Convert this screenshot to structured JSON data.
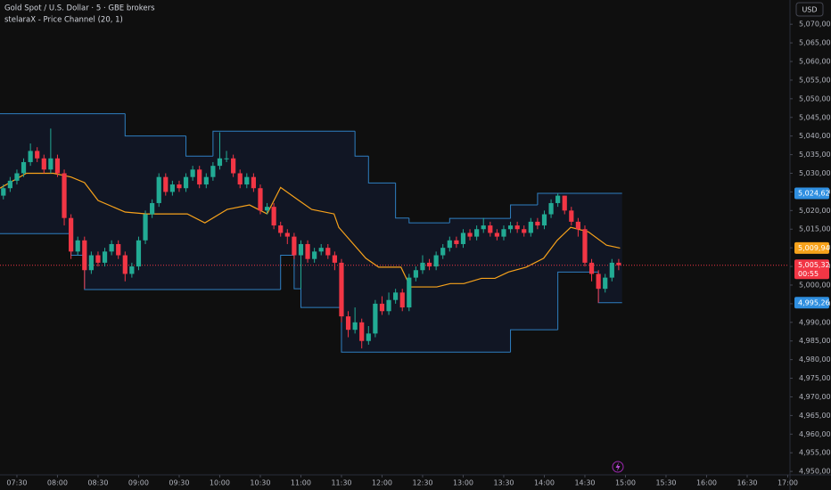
{
  "chart_data": {
    "type": "candlestick",
    "title": "Gold Spot / U.S. Dollar · 5 · GBE brokers",
    "indicator": "stelaraX - Price Channel (20, 1)",
    "currency": "USD",
    "countdown": "00:55",
    "up_color": "#22ab94",
    "down_color": "#f23645",
    "open": [
      5024,
      5026,
      5028,
      5030,
      5033,
      5036,
      5034,
      5031,
      5034,
      5030,
      5018,
      5009,
      5012,
      5004,
      5008,
      5006,
      5009,
      5011,
      5008,
      5003,
      5005,
      5012,
      5019,
      5022,
      5029,
      5025,
      5027,
      5026,
      5029,
      5031,
      5027,
      5029,
      5032,
      5034,
      5034,
      5030,
      5027,
      5029,
      5026,
      5020,
      5021,
      5016,
      5014,
      5013,
      5008,
      5011,
      5007,
      5009,
      5010,
      5008,
      5006,
      4991.6,
      4988,
      4990,
      4985,
      4987,
      4995,
      4993,
      4996,
      4998,
      4994,
      5002,
      5004,
      5006,
      5005,
      5008,
      5010,
      5012,
      5011,
      5014,
      5013,
      5015,
      5016,
      5014,
      5013,
      5015,
      5016,
      5015,
      5014,
      5017,
      5016,
      5019,
      5022,
      5024,
      5020,
      5017,
      5015,
      5006,
      5003,
      4999,
      5002,
      5006
    ],
    "high": [
      5027,
      5029,
      5031,
      5034,
      5038,
      5037,
      5035,
      5042,
      5035,
      5031,
      5019,
      5013,
      5013,
      5009,
      5009,
      5010,
      5012,
      5012,
      5009,
      5006,
      5013,
      5020,
      5023,
      5030,
      5030,
      5028,
      5028,
      5030,
      5032,
      5032,
      5030,
      5033,
      5041,
      5036,
      5035,
      5031,
      5030,
      5030,
      5027,
      5022,
      5022,
      5017,
      5015,
      5014,
      5012,
      5012,
      5010,
      5011,
      5011,
      5009,
      5007,
      4993,
      4994,
      4991,
      4989,
      4996,
      4997,
      4998,
      4999,
      4999,
      5003,
      5005,
      5008,
      5007,
      5009,
      5011,
      5013,
      5013,
      5015,
      5015,
      5016,
      5018,
      5017,
      5015,
      5016,
      5017,
      5017,
      5016,
      5018,
      5018,
      5020,
      5023,
      5024.62,
      5024,
      5021,
      5018,
      5016,
      5007,
      5004,
      5003,
      5007,
      5007
    ],
    "low": [
      5023,
      5025,
      5027,
      5029,
      5032,
      5033,
      5030,
      5030,
      5029,
      5016,
      5007,
      5008,
      4999,
      5003,
      5005,
      5005,
      5008,
      5007,
      5001,
      5002,
      5004,
      5011,
      5018,
      5021,
      5024,
      5024,
      5025,
      5025,
      5028,
      5026,
      5026,
      5028,
      5031,
      5033,
      5029,
      5026,
      5026,
      5025,
      5019,
      5019,
      5015,
      5013,
      5011,
      5007,
      4999,
      5006,
      5006,
      5008,
      5007,
      5004,
      4990,
      4986,
      4987,
      4983,
      4984,
      4986,
      4992,
      4992,
      4995,
      4993,
      4993,
      5001,
      5003,
      5004,
      5004,
      5007,
      5009,
      5010,
      5010,
      5012,
      5012,
      5014,
      5013,
      5012,
      5012,
      5014,
      5014,
      5013,
      5013,
      5015,
      5015,
      5018,
      5021,
      5019,
      5016,
      5013,
      5005,
      5001,
      4995.26,
      4998,
      5001,
      5004
    ],
    "close": [
      5026,
      5028,
      5030,
      5033,
      5036,
      5034,
      5031,
      5034,
      5030,
      5018,
      5009,
      5012,
      5004,
      5008,
      5006,
      5009,
      5011,
      5008,
      5003,
      5005,
      5012,
      5019,
      5022,
      5029,
      5025,
      5027,
      5026,
      5029,
      5031,
      5027,
      5029,
      5032,
      5034,
      5034,
      5030,
      5027,
      5029,
      5026,
      5020,
      5021,
      5016,
      5014,
      5013,
      5008,
      5011,
      5007,
      5009,
      5010,
      5008,
      5006,
      4991.6,
      4988,
      4990,
      4985,
      4987,
      4995,
      4993,
      4996,
      4998,
      4994,
      5002,
      5004,
      5006,
      5005,
      5008,
      5010,
      5012,
      5011,
      5014,
      5013,
      5015,
      5016,
      5014,
      5013,
      5015,
      5016,
      5015,
      5014,
      5017,
      5016,
      5019,
      5022,
      5024,
      5020,
      5017,
      5015,
      5006,
      5003,
      4999,
      5002,
      5006,
      5005.32
    ],
    "channel": {
      "color": "#2f7fc1",
      "fill": "rgba(41,98,255,0.09)",
      "upper": {
        "edges": [
          -0.5,
          18,
          27,
          31,
          52,
          54,
          58,
          60,
          66,
          75,
          79,
          91.5
        ],
        "values": [
          5046,
          5040,
          5034.6,
          5041.3,
          5034.6,
          5027.4,
          5018,
          5016.7,
          5017.9,
          5021.5,
          5024.62
        ]
      },
      "lower": {
        "edges": [
          -0.5,
          10,
          12,
          41,
          43,
          44,
          50,
          75,
          82,
          88,
          91.5
        ],
        "values": [
          5013.8,
          5008,
          4998.8,
          5008,
          4999,
          4994,
          4982,
          4988,
          5003.5,
          4995.26
        ]
      },
      "mid": {
        "color": "#f7a21b",
        "x": [
          -0.5,
          3.4,
          7.4,
          10,
          12,
          14,
          18,
          21.2,
          27.2,
          29.8,
          33.1,
          36.4,
          39,
          41,
          43.7,
          45.6,
          48.9,
          49.6,
          53.6,
          55.5,
          58.8,
          60.2,
          64.1,
          66.1,
          68.1,
          70.7,
          72.7,
          74.7,
          77.3,
          79.9,
          81.9,
          83.9,
          86.5,
          89.2,
          91.2
        ],
        "values": [
          5026,
          5030,
          5030,
          5029,
          5027.5,
          5022.7,
          5019.6,
          5019.1,
          5019.1,
          5016.7,
          5020.3,
          5021.5,
          5019.1,
          5026.2,
          5022.7,
          5020.3,
          5019.1,
          5015.5,
          5007.2,
          5004.8,
          5004.8,
          4999.5,
          4999.5,
          5000.4,
          5000.4,
          5001.8,
          5001.8,
          5003.5,
          5004.8,
          5007.2,
          5012,
          5015.5,
          5014.3,
          5010.7,
          5009.94
        ]
      }
    },
    "price_labels": [
      {
        "value": 5024.62,
        "label": "5,024,62",
        "color": "#2f8fe0"
      },
      {
        "value": 5009.94,
        "label": "5,009,94",
        "color": "#f7a21b"
      },
      {
        "value": 5005.32,
        "label": "5,005,32",
        "color": "#f23645"
      },
      {
        "value": 4995.26,
        "label": "4,995,26",
        "color": "#2f8fe0"
      }
    ],
    "xlim": [
      -0.5,
      116.2
    ],
    "ylim": [
      4947.4,
      5076.5
    ],
    "grid": false,
    "xticks": [
      {
        "value": 2,
        "label": "07:30"
      },
      {
        "value": 8,
        "label": "08:00"
      },
      {
        "value": 14,
        "label": "08:30"
      },
      {
        "value": 20,
        "label": "09:00"
      },
      {
        "value": 26,
        "label": "09:30"
      },
      {
        "value": 32,
        "label": "10:00"
      },
      {
        "value": 38,
        "label": "10:30"
      },
      {
        "value": 44,
        "label": "11:00"
      },
      {
        "value": 50,
        "label": "11:30"
      },
      {
        "value": 56,
        "label": "12:00"
      },
      {
        "value": 62,
        "label": "12:30"
      },
      {
        "value": 68,
        "label": "13:00"
      },
      {
        "value": 74,
        "label": "13:30"
      },
      {
        "value": 80,
        "label": "14:00"
      },
      {
        "value": 86,
        "label": "14:30"
      },
      {
        "value": 92,
        "label": "15:00"
      },
      {
        "value": 98,
        "label": "15:30"
      },
      {
        "value": 104,
        "label": "16:00"
      },
      {
        "value": 110,
        "label": "16:30"
      },
      {
        "value": 116,
        "label": "17:00"
      }
    ],
    "yticks": [
      {
        "value": 5070,
        "label": "5,070,00"
      },
      {
        "value": 5065,
        "label": "5,065,00"
      },
      {
        "value": 5060,
        "label": "5,060,00"
      },
      {
        "value": 5055,
        "label": "5,055,00"
      },
      {
        "value": 5050,
        "label": "5,050,00"
      },
      {
        "value": 5045,
        "label": "5,045,00"
      },
      {
        "value": 5040,
        "label": "5,040,00"
      },
      {
        "value": 5035,
        "label": "5,035,00"
      },
      {
        "value": 5030,
        "label": "5,030,00"
      },
      {
        "value": 5025,
        "label": "5,025,00"
      },
      {
        "value": 5020,
        "label": "5,020,00"
      },
      {
        "value": 5015,
        "label": "5,015,00"
      },
      {
        "value": 5010,
        "label": "5,010,00"
      },
      {
        "value": 5005,
        "label": "5,005,00"
      },
      {
        "value": 5000,
        "label": "5,000,00"
      },
      {
        "value": 4995,
        "label": "4,995,00"
      },
      {
        "value": 4990,
        "label": "4,990,00"
      },
      {
        "value": 4985,
        "label": "4,985,00"
      },
      {
        "value": 4980,
        "label": "4,980,00"
      },
      {
        "value": 4975,
        "label": "4,975,00"
      },
      {
        "value": 4970,
        "label": "4,970,00"
      },
      {
        "value": 4965,
        "label": "4,965,00"
      },
      {
        "value": 4960,
        "label": "4,960,00"
      },
      {
        "value": 4955,
        "label": "4,955,00"
      },
      {
        "value": 4950,
        "label": "4,950,00"
      }
    ]
  }
}
